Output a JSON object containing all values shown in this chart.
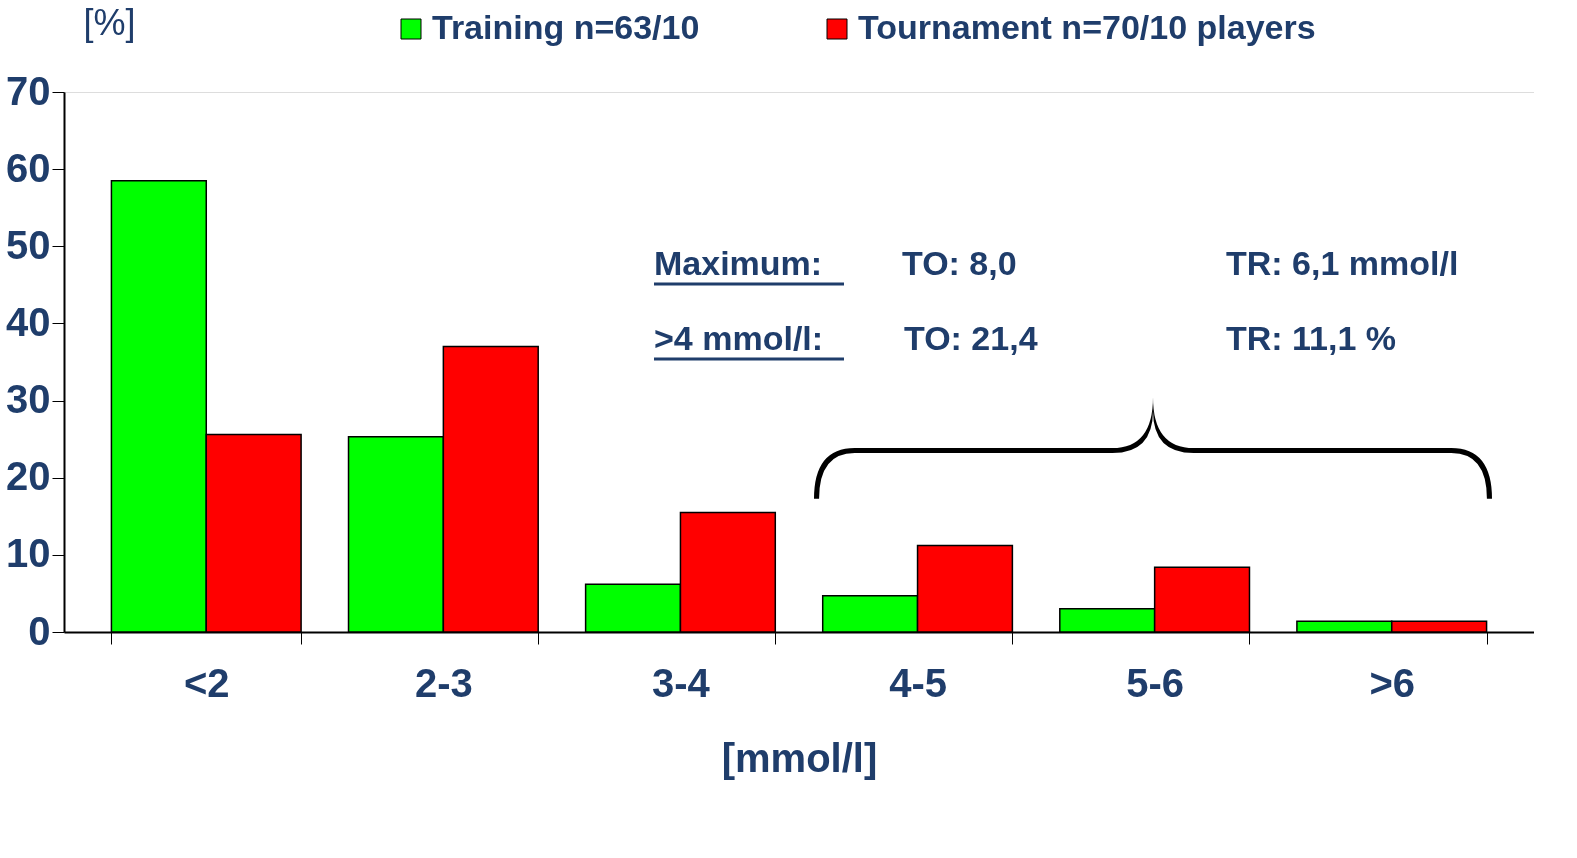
{
  "chart_data": {
    "type": "bar",
    "categories": [
      "<2",
      "2-3",
      "3-4",
      "4-5",
      "5-6",
      ">6"
    ],
    "series": [
      {
        "name": "Training n=63/10",
        "color": "#00ff00",
        "values": [
          58.5,
          25.3,
          6.2,
          4.7,
          3.0,
          1.4
        ]
      },
      {
        "name": "Tournament n=70/10 players",
        "color": "#ff0000",
        "values": [
          25.6,
          37.0,
          15.5,
          11.2,
          8.4,
          1.4
        ]
      }
    ],
    "ylim": [
      0,
      70
    ],
    "yticks": [
      0,
      10,
      20,
      30,
      40,
      50,
      60,
      70
    ],
    "xlabel": "[mmol/l]",
    "ylabel": "[%]",
    "legend": "top",
    "grid": false,
    "annotations": [
      "Maximum:",
      "TO:    8,0",
      "TR:   6,1 mmol/l",
      ">4 mmol/l:",
      "TO: 21,4",
      "TR: 11,1 %"
    ]
  }
}
